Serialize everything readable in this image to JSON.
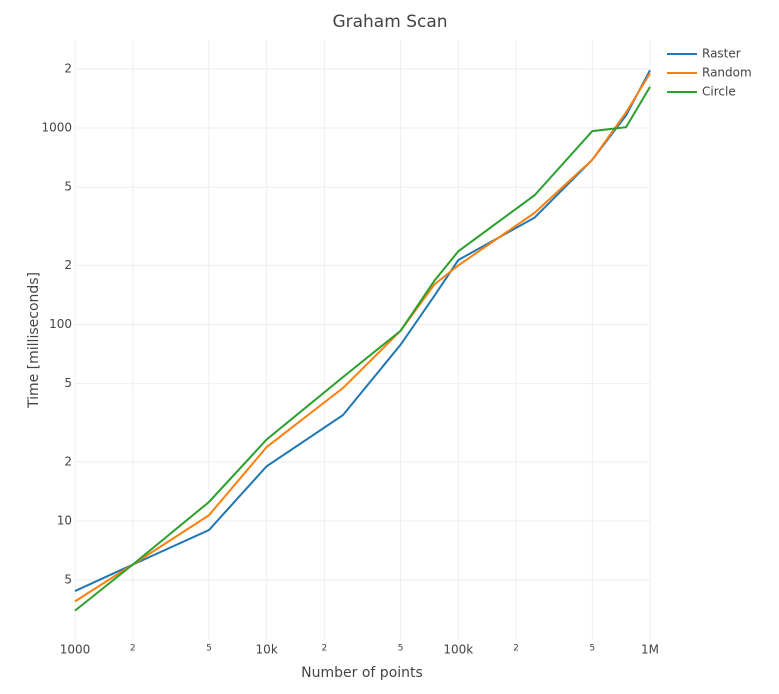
{
  "chart_data": {
    "type": "line",
    "title": "Graham Scan",
    "x_label": "Number of points",
    "y_label": "Time [milliseconds]",
    "x_log": true,
    "y_log": true,
    "grid": true,
    "legend": "top-right",
    "xlim": [
      1000,
      1000000
    ],
    "ylim": [
      2.48,
      2806
    ],
    "xticks": [
      1000,
      {
        "value": 2000,
        "label": "2"
      },
      {
        "value": 5000,
        "label": "5"
      },
      {
        "value": 10000,
        "label": "10k"
      },
      {
        "value": 20000,
        "label": "2"
      },
      {
        "value": 50000,
        "label": "5"
      },
      {
        "value": 100000,
        "label": "100k"
      },
      {
        "value": 200000,
        "label": "2"
      },
      {
        "value": 500000,
        "label": "5"
      },
      {
        "value": 1000000,
        "label": "1M"
      }
    ],
    "yticks": [
      5,
      10,
      {
        "value": 20,
        "label": "2"
      },
      {
        "value": 50,
        "label": "5"
      },
      100,
      {
        "value": 200,
        "label": "2"
      },
      {
        "value": 500,
        "label": "5"
      },
      1000,
      {
        "value": 2000,
        "label": "2"
      }
    ],
    "x": [
      1000,
      2000,
      5000,
      10000,
      25000,
      50000,
      75000,
      100000,
      250000,
      500000,
      750000,
      1000000
    ],
    "series": [
      {
        "name": "Raster",
        "color": "#1f77b4",
        "values": [
          4.4,
          6.0,
          9.0,
          19,
          34.6,
          79,
          140,
          213,
          350,
          690,
          1160,
          1970
        ]
      },
      {
        "name": "Random",
        "color": "#ff7f0e",
        "values": [
          3.9,
          6.0,
          10.7,
          23.8,
          47.5,
          93,
          160,
          200,
          370,
          690,
          1200,
          1900
        ]
      },
      {
        "name": "Circle",
        "color": "#2ca02c",
        "values": [
          3.5,
          6.0,
          12.5,
          26,
          54,
          93,
          167,
          236,
          455,
          965,
          1010,
          1620
        ]
      }
    ]
  }
}
